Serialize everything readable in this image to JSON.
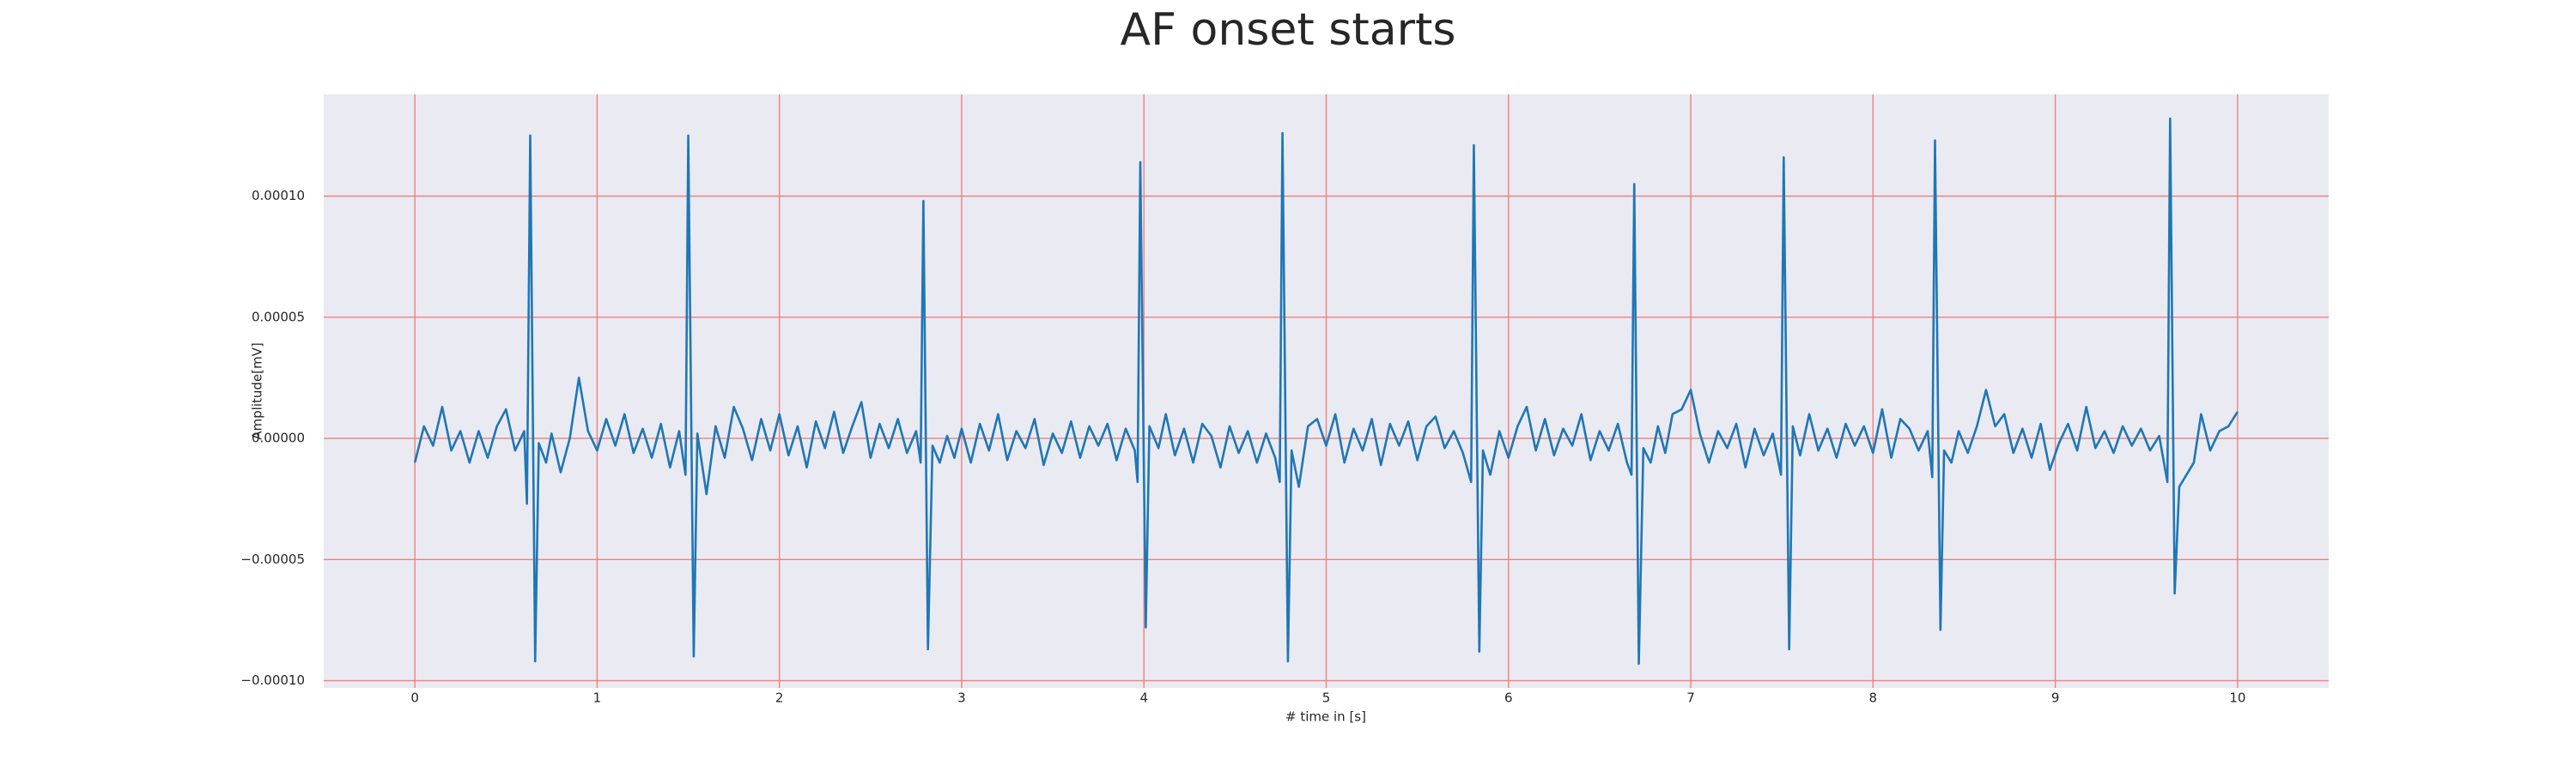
{
  "chart_data": {
    "type": "line",
    "title": "AF onset starts",
    "xlabel": "# time in [s]",
    "ylabel": "Amplitude[mV]",
    "xlim": [
      -0.5,
      10.5
    ],
    "ylim": [
      -0.000103,
      0.000142
    ],
    "xticks": [
      0,
      1,
      2,
      3,
      4,
      5,
      6,
      7,
      8,
      9,
      10
    ],
    "yticks": [
      {
        "value": -0.0001,
        "label": "−0.00010"
      },
      {
        "value": -5e-05,
        "label": "−0.00005"
      },
      {
        "value": 0,
        "label": "0.00000"
      },
      {
        "value": 5e-05,
        "label": "0.00005"
      },
      {
        "value": 0.0001,
        "label": "0.00010"
      }
    ],
    "grid": true,
    "grid_color": "#f08080",
    "background": "#eaeaf2",
    "x": [
      0,
      0.05,
      0.1,
      0.15,
      0.2,
      0.25,
      0.3,
      0.35,
      0.4,
      0.45,
      0.5,
      0.55,
      0.6,
      0.615,
      0.633,
      0.66,
      0.68,
      0.72,
      0.75,
      0.8,
      0.85,
      0.9,
      0.95,
      1.0,
      1.05,
      1.1,
      1.15,
      1.2,
      1.25,
      1.3,
      1.35,
      1.4,
      1.45,
      1.485,
      1.5,
      1.53,
      1.55,
      1.6,
      1.65,
      1.7,
      1.75,
      1.8,
      1.85,
      1.9,
      1.95,
      2.0,
      2.05,
      2.1,
      2.15,
      2.2,
      2.25,
      2.3,
      2.35,
      2.4,
      2.45,
      2.5,
      2.55,
      2.6,
      2.65,
      2.7,
      2.75,
      2.775,
      2.79,
      2.815,
      2.84,
      2.88,
      2.92,
      2.96,
      3.0,
      3.05,
      3.1,
      3.15,
      3.2,
      3.25,
      3.3,
      3.35,
      3.4,
      3.45,
      3.5,
      3.55,
      3.6,
      3.65,
      3.7,
      3.75,
      3.8,
      3.85,
      3.9,
      3.95,
      3.965,
      3.98,
      4.01,
      4.03,
      4.08,
      4.12,
      4.17,
      4.22,
      4.27,
      4.32,
      4.37,
      4.42,
      4.47,
      4.52,
      4.57,
      4.62,
      4.67,
      4.72,
      4.745,
      4.76,
      4.79,
      4.81,
      4.85,
      4.9,
      4.95,
      5.0,
      5.05,
      5.1,
      5.15,
      5.2,
      5.25,
      5.3,
      5.35,
      5.4,
      5.45,
      5.5,
      5.55,
      5.6,
      5.65,
      5.7,
      5.75,
      5.795,
      5.81,
      5.84,
      5.86,
      5.9,
      5.95,
      6.0,
      6.05,
      6.1,
      6.15,
      6.2,
      6.25,
      6.3,
      6.35,
      6.4,
      6.45,
      6.5,
      6.55,
      6.6,
      6.65,
      6.675,
      6.69,
      6.715,
      6.74,
      6.78,
      6.82,
      6.86,
      6.9,
      6.95,
      7.0,
      7.05,
      7.1,
      7.15,
      7.2,
      7.25,
      7.3,
      7.35,
      7.4,
      7.45,
      7.495,
      7.51,
      7.54,
      7.56,
      7.6,
      7.65,
      7.7,
      7.75,
      7.8,
      7.85,
      7.9,
      7.95,
      8.0,
      8.05,
      8.1,
      8.15,
      8.2,
      8.25,
      8.3,
      8.325,
      8.34,
      8.37,
      8.39,
      8.43,
      8.47,
      8.52,
      8.57,
      8.62,
      8.67,
      8.72,
      8.77,
      8.82,
      8.87,
      8.92,
      8.97,
      9.02,
      9.07,
      9.12,
      9.17,
      9.22,
      9.27,
      9.32,
      9.37,
      9.42,
      9.47,
      9.52,
      9.57,
      9.615,
      9.63,
      9.655,
      9.68,
      9.72,
      9.76,
      9.8,
      9.85,
      9.9,
      9.95,
      10.0
    ],
    "series": [
      {
        "color": "#1f77b4",
        "values": [
          -1e-05,
          5e-06,
          -3e-06,
          1.3e-05,
          -5e-06,
          3e-06,
          -1e-05,
          3e-06,
          -8e-06,
          5e-06,
          1.2e-05,
          -5e-06,
          3e-06,
          -2.7e-05,
          0.000125,
          -9.2e-05,
          -2e-06,
          -1e-05,
          2e-06,
          -1.4e-05,
          0,
          2.5e-05,
          3e-06,
          -5e-06,
          8e-06,
          -3e-06,
          1e-05,
          -6e-06,
          4e-06,
          -8e-06,
          6e-06,
          -1.2e-05,
          3e-06,
          -1.5e-05,
          0.000125,
          -9e-05,
          2e-06,
          -2.3e-05,
          5e-06,
          -8e-06,
          1.3e-05,
          4e-06,
          -9e-06,
          8e-06,
          -5e-06,
          1e-05,
          -7e-06,
          5e-06,
          -1.2e-05,
          7e-06,
          -4e-06,
          1.1e-05,
          -6e-06,
          5e-06,
          1.5e-05,
          -8e-06,
          6e-06,
          -4e-06,
          8e-06,
          -6e-06,
          3e-06,
          -1e-05,
          9.8e-05,
          -8.7e-05,
          -3e-06,
          -1e-05,
          1e-06,
          -8e-06,
          4e-06,
          -1e-05,
          6e-06,
          -5e-06,
          1e-05,
          -9e-06,
          3e-06,
          -4e-06,
          8e-06,
          -1.1e-05,
          2e-06,
          -6e-06,
          7e-06,
          -8e-06,
          5e-06,
          -3e-06,
          6e-06,
          -9e-06,
          4e-06,
          -5e-06,
          -1.8e-05,
          0.000114,
          -7.8e-05,
          5e-06,
          -4e-06,
          1e-05,
          -7e-06,
          4e-06,
          -1e-05,
          6e-06,
          1e-06,
          -1.2e-05,
          5e-06,
          -6e-06,
          3e-06,
          -1e-05,
          2e-06,
          -8e-06,
          -1.8e-05,
          0.000126,
          -9.2e-05,
          -5e-06,
          -2e-05,
          5e-06,
          8e-06,
          -3e-06,
          1e-05,
          -1e-05,
          4e-06,
          -5e-06,
          8e-06,
          -1.1e-05,
          6e-06,
          -3e-06,
          7e-06,
          -9e-06,
          5e-06,
          9e-06,
          -4e-06,
          3e-06,
          -6e-06,
          -1.8e-05,
          0.000121,
          -8.8e-05,
          -5e-06,
          -1.5e-05,
          3e-06,
          -8e-06,
          5e-06,
          1.3e-05,
          -5e-06,
          8e-06,
          -7e-06,
          4e-06,
          -3e-06,
          1e-05,
          -9e-06,
          3e-06,
          -5e-06,
          6e-06,
          -1e-05,
          -1.5e-05,
          0.000105,
          -9.3e-05,
          -4e-06,
          -1e-05,
          5e-06,
          -6e-06,
          1e-05,
          1.2e-05,
          2e-05,
          2e-06,
          -1e-05,
          3e-06,
          -4e-06,
          6e-06,
          -1.2e-05,
          4e-06,
          -7e-06,
          2e-06,
          -1.5e-05,
          0.000116,
          -8.7e-05,
          5e-06,
          -7e-06,
          1e-05,
          -5e-06,
          4e-06,
          -8e-06,
          6e-06,
          -3e-06,
          5e-06,
          -6e-06,
          1.2e-05,
          -8e-06,
          8e-06,
          4e-06,
          -5e-06,
          3e-06,
          -1.6e-05,
          0.000123,
          -7.9e-05,
          -5e-06,
          -1e-05,
          3e-06,
          -6e-06,
          5e-06,
          2e-05,
          5e-06,
          1e-05,
          -6e-06,
          4e-06,
          -8e-06,
          6e-06,
          -1.3e-05,
          -2e-06,
          6e-06,
          -5e-06,
          1.3e-05,
          -4e-06,
          3e-06,
          -6e-06,
          5e-06,
          -3e-06,
          4e-06,
          -5e-06,
          1e-06,
          -1.8e-05,
          0.000132,
          -6.4e-05,
          -2e-05,
          -1.5e-05,
          -1e-05,
          1e-05,
          -5e-06,
          3e-06,
          5e-06,
          1.1e-05
        ]
      }
    ]
  }
}
